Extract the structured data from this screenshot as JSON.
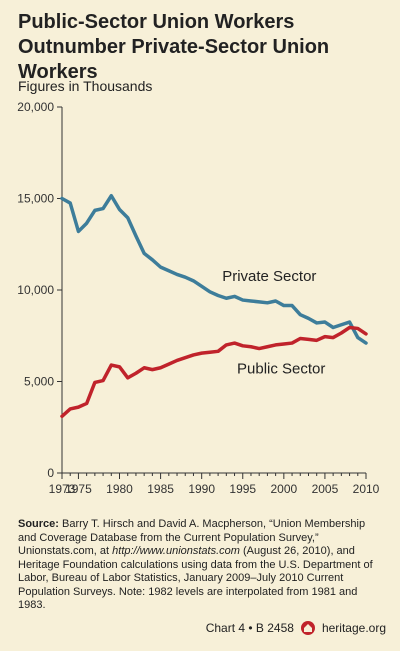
{
  "header": {
    "title": "Public-Sector Union Workers Outnumber Private-Sector Union Workers",
    "subtitle": "Figures in Thousands"
  },
  "source": {
    "label": "Source:",
    "text_before_url": "Barry T. Hirsch and David A. Macpherson, “Union Membership and Coverage Database from the Current Population Survey,” Unionstats.com, at ",
    "url": "http://www.unionstats.com",
    "text_after_url": " (August 26, 2010), and Heritage Foundation calculations using data from the U.S. Department of Labor, Bureau of Labor Statistics, January 2009–July 2010 Current Population Surveys. Note: 1982 levels are interpolated from 1981 and 1983."
  },
  "footer": {
    "chart_ref": "Chart 4 • B 2458",
    "site": "heritage.org",
    "logo_icon": "heritage-logo-icon"
  },
  "chart_data": {
    "type": "line",
    "title": "Public-Sector Union Workers Outnumber Private-Sector Union Workers",
    "ylabel": "Figures in Thousands",
    "xlabel": "",
    "ylim": [
      0,
      20000
    ],
    "yticks": [
      0,
      5000,
      10000,
      15000,
      20000
    ],
    "ytick_labels": [
      "0",
      "5,000",
      "10,000",
      "15,000",
      "20,000"
    ],
    "xlim": [
      1973,
      2010
    ],
    "xticks": [
      1973,
      1975,
      1980,
      1985,
      1990,
      1995,
      2000,
      2005,
      2010
    ],
    "xtick_labels": [
      "1973",
      "1975",
      "1980",
      "1985",
      "1990",
      "1995",
      "2000",
      "2005",
      "2010"
    ],
    "grid": false,
    "legend": "inline labels",
    "x": [
      1973,
      1974,
      1975,
      1976,
      1977,
      1978,
      1979,
      1980,
      1981,
      1982,
      1983,
      1984,
      1985,
      1986,
      1987,
      1988,
      1989,
      1990,
      1991,
      1992,
      1993,
      1994,
      1995,
      1996,
      1997,
      1998,
      1999,
      2000,
      2001,
      2002,
      2003,
      2004,
      2005,
      2006,
      2007,
      2008,
      2009,
      2010
    ],
    "series": [
      {
        "name": "Private Sector",
        "color": "#3d7d9a",
        "values": [
          15000,
          14750,
          13200,
          13650,
          14350,
          14450,
          15150,
          14400,
          13950,
          12950,
          12000,
          11650,
          11250,
          11050,
          10850,
          10700,
          10500,
          10200,
          9900,
          9700,
          9550,
          9650,
          9450,
          9400,
          9350,
          9300,
          9400,
          9150,
          9150,
          8650,
          8450,
          8200,
          8250,
          7950,
          8100,
          8250,
          7400,
          7100
        ]
      },
      {
        "name": "Public Sector",
        "color": "#c0232b",
        "values": [
          3100,
          3500,
          3600,
          3800,
          4950,
          5050,
          5900,
          5800,
          5200,
          5450,
          5750,
          5650,
          5750,
          5950,
          6150,
          6300,
          6450,
          6550,
          6600,
          6650,
          7000,
          7100,
          6950,
          6900,
          6800,
          6900,
          7000,
          7050,
          7100,
          7350,
          7300,
          7250,
          7450,
          7400,
          7650,
          7950,
          7900,
          7600
        ]
      }
    ]
  }
}
